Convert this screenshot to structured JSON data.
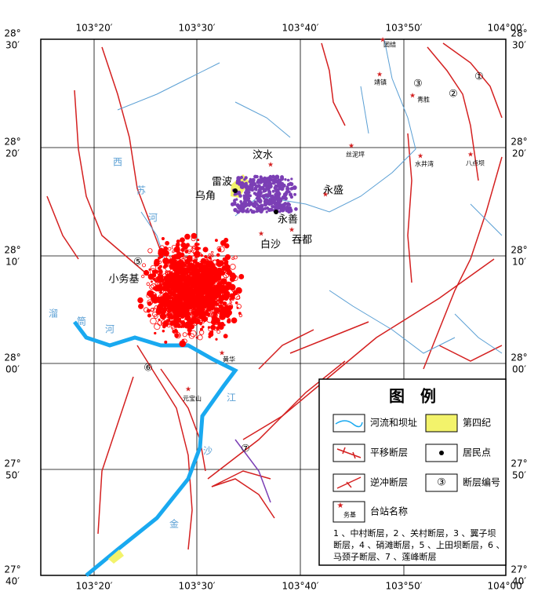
{
  "map": {
    "lon_labels": [
      "103°20′",
      "103°30′",
      "103°40′",
      "103°50′",
      "104°00′"
    ],
    "lat_labels": [
      {
        "deg": "28°",
        "min": "30′"
      },
      {
        "deg": "28°",
        "min": "20′"
      },
      {
        "deg": "28°",
        "min": "10′"
      },
      {
        "deg": "28°",
        "min": "00′"
      },
      {
        "deg": "27°",
        "min": "50′"
      },
      {
        "deg": "27°",
        "min": "40′"
      }
    ],
    "places": [
      "汶水",
      "雷波",
      "乌角",
      "永盛",
      "永善",
      "吞都",
      "白沙",
      "小务基"
    ],
    "stations": [
      "团结",
      "靖镇",
      "青胜",
      "丝泥坪",
      "水井湾",
      "八点坝",
      "元宝山",
      "黄华"
    ],
    "fault_numbers": [
      "①",
      "②",
      "③",
      "⑤",
      "⑥",
      "⑦"
    ],
    "river_labels": [
      "西",
      "苏",
      "河",
      "溜",
      "筒",
      "河",
      "江",
      "沙",
      "金"
    ]
  },
  "legend": {
    "title": "图　例",
    "items": [
      "河流和坝址",
      "第四纪",
      "平移断层",
      "居民点",
      "逆冲断层",
      "断层编号",
      "台站名称"
    ],
    "fault_symbol": "③",
    "station_sample": "务基",
    "note": [
      "1 、中村断层，2 、关村断层，3 、翼子坝",
      "断层，4 、硝滩断层，5 、上田坝断层，6 、",
      "马颈子断层、7 、莲峰断层"
    ]
  }
}
